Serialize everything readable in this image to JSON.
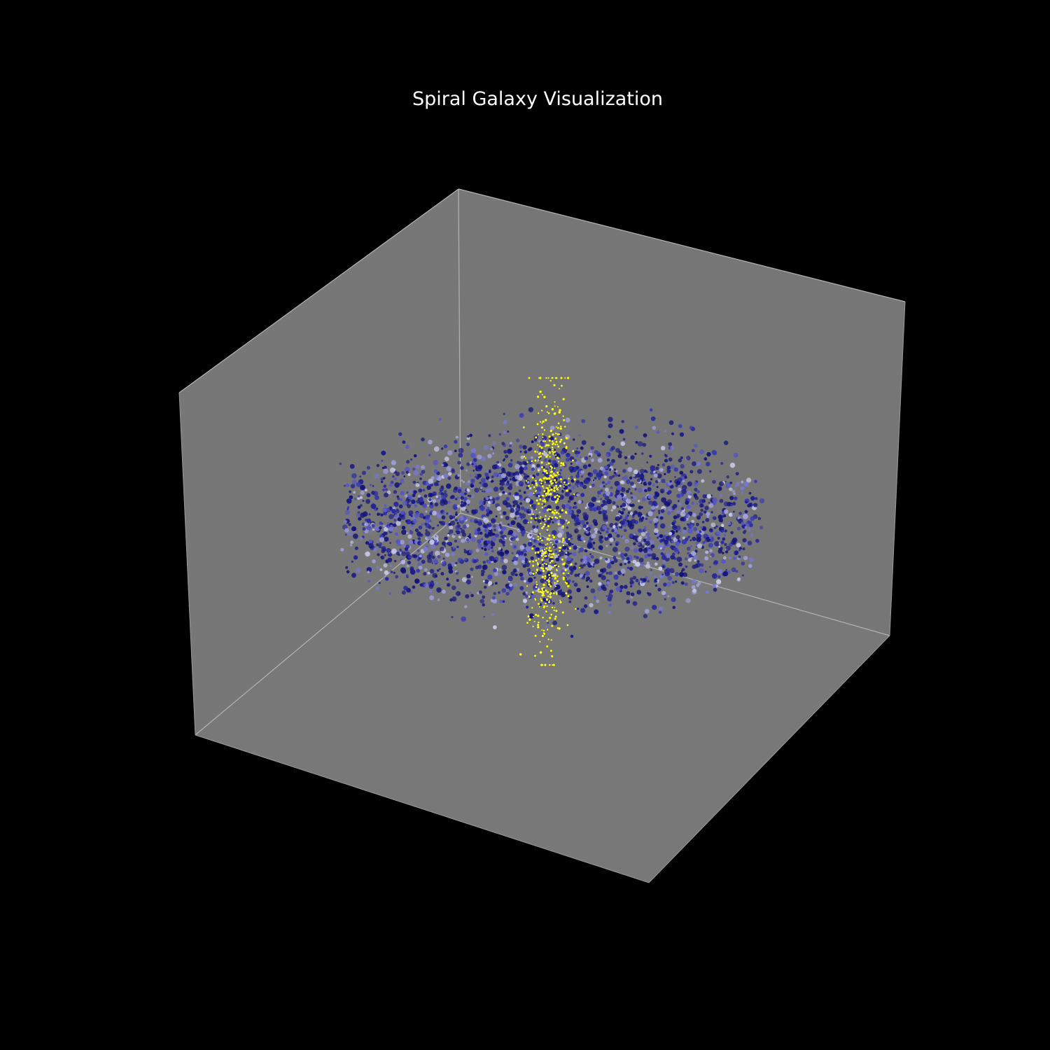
{
  "chart_data": {
    "type": "scatter3d",
    "title": "Spiral Galaxy Visualization",
    "xlabel": "",
    "ylabel": "",
    "zlabel": "",
    "axes_visible": false,
    "grid": false,
    "background_color": "#000000",
    "pane_color": "#777777",
    "edge_color": "#aaaaaa",
    "series": [
      {
        "role": "disk",
        "marker": "o",
        "count": 2600,
        "colors": [
          "#15157a",
          "#1e1e8c",
          "#2a2aa0",
          "#3a3ab4",
          "#5656c4",
          "#7878cf",
          "#a0a0dc",
          "#c8c8e8"
        ]
      },
      {
        "role": "core",
        "marker": "o",
        "count": 600,
        "colors": [
          "#ffff00",
          "#ffff33"
        ]
      }
    ]
  }
}
